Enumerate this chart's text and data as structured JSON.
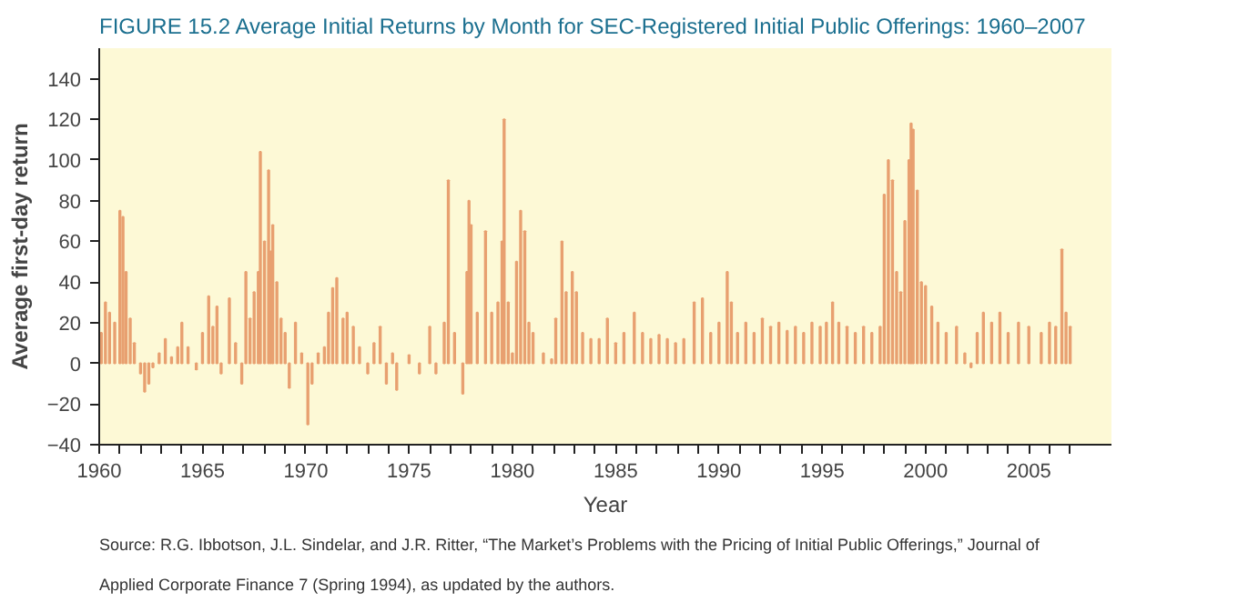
{
  "chart_data": {
    "type": "bar",
    "title": "FIGURE 15.2   Average Initial Returns by Month for SEC-Registered Initial Public Offerings: 1960–2007",
    "xlabel": "Year",
    "ylabel": "Average first-day return",
    "color": "#e8a070",
    "x": [
      1960.1,
      1960.3,
      1960.5,
      1960.75,
      1961.0,
      1961.15,
      1961.3,
      1961.5,
      1961.7,
      1962.0,
      1962.2,
      1962.4,
      1962.6,
      1962.9,
      1963.2,
      1963.5,
      1963.8,
      1964.0,
      1964.3,
      1964.7,
      1965.0,
      1965.3,
      1965.5,
      1965.7,
      1965.9,
      1966.3,
      1966.6,
      1966.9,
      1967.1,
      1967.3,
      1967.5,
      1967.7,
      1967.8,
      1968.0,
      1968.2,
      1968.3,
      1968.4,
      1968.6,
      1968.8,
      1969.0,
      1969.2,
      1969.5,
      1969.8,
      1970.1,
      1970.3,
      1970.6,
      1970.9,
      1971.1,
      1971.3,
      1971.5,
      1971.8,
      1972.0,
      1972.3,
      1972.6,
      1973.0,
      1973.3,
      1973.6,
      1973.9,
      1974.2,
      1974.4,
      1975.0,
      1975.5,
      1976.0,
      1976.3,
      1976.7,
      1976.9,
      1977.2,
      1977.6,
      1977.8,
      1977.9,
      1978.0,
      1978.3,
      1978.7,
      1979.0,
      1979.3,
      1979.5,
      1979.6,
      1979.8,
      1980.0,
      1980.2,
      1980.4,
      1980.6,
      1980.8,
      1981.0,
      1981.5,
      1981.9,
      1982.1,
      1982.4,
      1982.6,
      1982.9,
      1983.1,
      1983.4,
      1983.8,
      1984.2,
      1984.6,
      1985.0,
      1985.4,
      1985.9,
      1986.3,
      1986.7,
      1987.1,
      1987.5,
      1987.9,
      1988.3,
      1988.8,
      1989.2,
      1989.6,
      1990.0,
      1990.4,
      1990.6,
      1990.9,
      1991.3,
      1991.7,
      1992.1,
      1992.5,
      1992.9,
      1993.3,
      1993.7,
      1994.1,
      1994.5,
      1994.9,
      1995.2,
      1995.5,
      1995.8,
      1996.2,
      1996.6,
      1997.0,
      1997.4,
      1997.8,
      1998.0,
      1998.2,
      1998.4,
      1998.6,
      1998.8,
      1999.0,
      1999.2,
      1999.3,
      1999.4,
      1999.6,
      1999.8,
      2000.0,
      2000.3,
      2000.6,
      2001.0,
      2001.5,
      2001.9,
      2002.2,
      2002.5,
      2002.8,
      2003.2,
      2003.6,
      2004.0,
      2004.5,
      2005.0,
      2005.6,
      2006.0,
      2006.3,
      2006.6,
      2006.8,
      2007.0
    ],
    "values": [
      15,
      30,
      25,
      20,
      75,
      72,
      45,
      22,
      10,
      -5,
      -14,
      -10,
      -2,
      5,
      12,
      3,
      8,
      20,
      8,
      -3,
      15,
      33,
      18,
      28,
      -5,
      32,
      10,
      -10,
      45,
      22,
      35,
      45,
      104,
      60,
      95,
      55,
      68,
      40,
      22,
      15,
      -12,
      20,
      5,
      -30,
      -10,
      5,
      8,
      25,
      37,
      42,
      22,
      25,
      18,
      8,
      -5,
      10,
      18,
      -10,
      5,
      -13,
      4,
      -5,
      18,
      -5,
      20,
      90,
      15,
      -15,
      45,
      80,
      68,
      25,
      65,
      25,
      30,
      60,
      120,
      30,
      5,
      50,
      75,
      65,
      20,
      15,
      5,
      2,
      22,
      60,
      35,
      45,
      35,
      15,
      12,
      12,
      22,
      10,
      15,
      25,
      15,
      12,
      14,
      12,
      10,
      12,
      30,
      32,
      15,
      20,
      45,
      30,
      15,
      20,
      15,
      22,
      18,
      20,
      16,
      18,
      15,
      20,
      18,
      20,
      30,
      20,
      18,
      15,
      18,
      15,
      18,
      83,
      100,
      90,
      45,
      35,
      70,
      100,
      118,
      115,
      85,
      40,
      38,
      28,
      20,
      15,
      18,
      5,
      -2,
      15,
      25,
      20,
      25,
      15,
      20,
      18,
      15,
      20,
      18,
      56,
      25,
      18
    ],
    "xlim": [
      1960,
      2009
    ],
    "xticks": [
      1960,
      {
        "value": 1961,
        "label": null
      },
      {
        "value": 1962,
        "label": null
      },
      {
        "value": 1963,
        "label": null
      },
      {
        "value": 1964,
        "label": null
      },
      1965,
      {
        "value": 1966,
        "label": null
      },
      {
        "value": 1967,
        "label": null
      },
      {
        "value": 1968,
        "label": null
      },
      {
        "value": 1969,
        "label": null
      },
      1970,
      {
        "value": 1971,
        "label": null
      },
      {
        "value": 1972,
        "label": null
      },
      {
        "value": 1973,
        "label": null
      },
      {
        "value": 1974,
        "label": null
      },
      1975,
      {
        "value": 1976,
        "label": null
      },
      {
        "value": 1977,
        "label": null
      },
      {
        "value": 1978,
        "label": null
      },
      {
        "value": 1979,
        "label": null
      },
      1980,
      {
        "value": 1981,
        "label": null
      },
      {
        "value": 1982,
        "label": null
      },
      {
        "value": 1983,
        "label": null
      },
      {
        "value": 1984,
        "label": null
      },
      1985,
      {
        "value": 1986,
        "label": null
      },
      {
        "value": 1987,
        "label": null
      },
      {
        "value": 1988,
        "label": null
      },
      {
        "value": 1989,
        "label": null
      },
      1990,
      {
        "value": 1991,
        "label": null
      },
      {
        "value": 1992,
        "label": null
      },
      {
        "value": 1993,
        "label": null
      },
      {
        "value": 1994,
        "label": null
      },
      1995,
      {
        "value": 1996,
        "label": null
      },
      {
        "value": 1997,
        "label": null
      },
      {
        "value": 1998,
        "label": null
      },
      {
        "value": 1999,
        "label": null
      },
      2000,
      {
        "value": 2001,
        "label": null
      },
      {
        "value": 2002,
        "label": null
      },
      {
        "value": 2003,
        "label": null
      },
      {
        "value": 2004,
        "label": null
      },
      2005,
      {
        "value": 2006,
        "label": null
      },
      {
        "value": 2007,
        "label": null
      }
    ],
    "ylim": [
      -40,
      155
    ],
    "yticks": [
      {
        "value": -40,
        "label": "−40"
      },
      {
        "value": -20,
        "label": "−20"
      },
      0,
      20,
      40,
      60,
      80,
      100,
      120,
      140
    ],
    "annotations": [
      "Source: R.G. Ibbotson, J.L. Sindelar, and J.R. Ritter, “The Market’s Problems with the Pricing of Initial Public Offerings,” Journal of Applied Corporate Finance 7 (Spring 1994), as updated by the authors."
    ]
  }
}
